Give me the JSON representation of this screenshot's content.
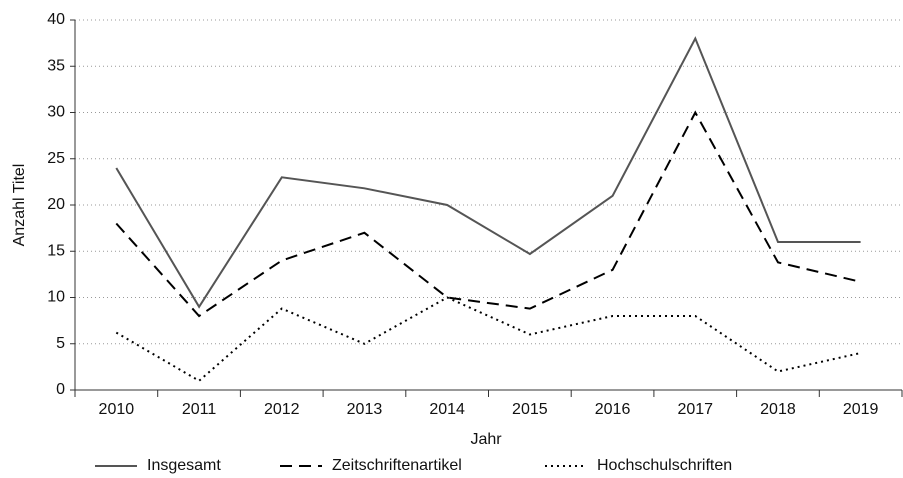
{
  "chart_data": {
    "type": "line",
    "xlabel": "Jahr",
    "ylabel": "Anzahl Titel",
    "categories": [
      "2010",
      "2011",
      "2012",
      "2013",
      "2014",
      "2015",
      "2016",
      "2017",
      "2018",
      "2019"
    ],
    "series": [
      {
        "name": "Insgesamt",
        "color": "#555555",
        "dash": "solid",
        "values": [
          24,
          9,
          23,
          21.8,
          20,
          14.7,
          21,
          38,
          16,
          16
        ]
      },
      {
        "name": "Zeitschriftenartikel",
        "color": "#000000",
        "dash": "dashed",
        "values": [
          18,
          8,
          14,
          17,
          10,
          8.8,
          13,
          30,
          13.8,
          11.7
        ]
      },
      {
        "name": "Hochschulschriften",
        "color": "#000000",
        "dash": "dotted",
        "values": [
          6.2,
          1,
          8.8,
          5,
          10,
          6,
          8,
          8,
          2,
          4
        ]
      }
    ],
    "ylim": [
      0,
      40
    ],
    "yticks": [
      0,
      5,
      10,
      15,
      20,
      25,
      30,
      35,
      40
    ],
    "grid": true
  }
}
